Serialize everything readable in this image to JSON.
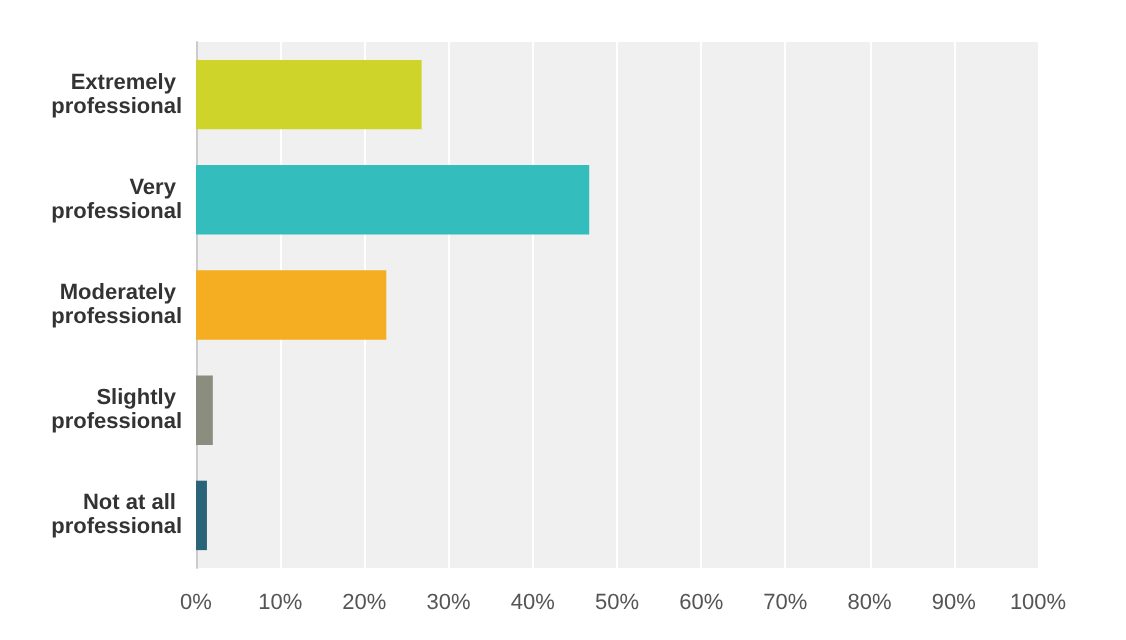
{
  "chart_data": {
    "type": "bar",
    "orientation": "horizontal",
    "categories": [
      "Extremely professional",
      "Very professional",
      "Moderately professional",
      "Slightly professional",
      "Not at all professional"
    ],
    "values": [
      26.8,
      46.7,
      22.6,
      2.0,
      1.3
    ],
    "colors": [
      "#cfd42a",
      "#33bdbd",
      "#f5ae22",
      "#8b8e7f",
      "#2a6478"
    ],
    "xlim": [
      0,
      100
    ],
    "xticks": [
      {
        "value": 0,
        "label": "0%"
      },
      {
        "value": 10,
        "label": "10%"
      },
      {
        "value": 20,
        "label": "20%"
      },
      {
        "value": 30,
        "label": "30%"
      },
      {
        "value": 40,
        "label": "40%"
      },
      {
        "value": 50,
        "label": "50%"
      },
      {
        "value": 60,
        "label": "60%"
      },
      {
        "value": 70,
        "label": "70%"
      },
      {
        "value": 80,
        "label": "80%"
      },
      {
        "value": 90,
        "label": "90%"
      },
      {
        "value": 100,
        "label": "100%"
      }
    ],
    "grid": "x"
  }
}
